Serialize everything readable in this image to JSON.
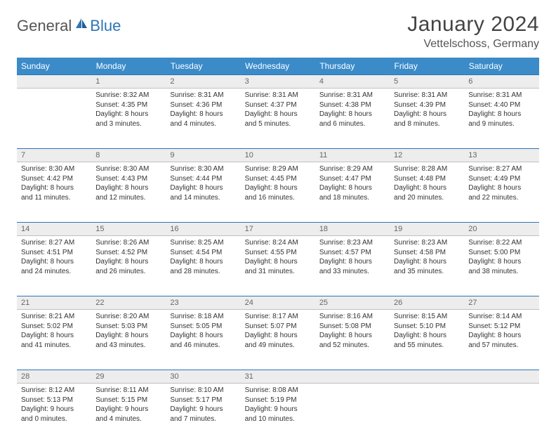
{
  "logo": {
    "text1": "General",
    "text2": "Blue"
  },
  "title": "January 2024",
  "location": "Vettelschoss, Germany",
  "day_headers": [
    "Sunday",
    "Monday",
    "Tuesday",
    "Wednesday",
    "Thursday",
    "Friday",
    "Saturday"
  ],
  "colors": {
    "header_bg": "#3b8bc9",
    "header_text": "#ffffff",
    "row_divider": "#2e75b6",
    "daynum_bg": "#ededed",
    "body_text": "#333333",
    "logo_gray": "#555555",
    "logo_blue": "#2e75b6"
  },
  "weeks": [
    {
      "nums": [
        "",
        "1",
        "2",
        "3",
        "4",
        "5",
        "6"
      ],
      "cells": [
        "",
        "Sunrise: 8:32 AM\nSunset: 4:35 PM\nDaylight: 8 hours and 3 minutes.",
        "Sunrise: 8:31 AM\nSunset: 4:36 PM\nDaylight: 8 hours and 4 minutes.",
        "Sunrise: 8:31 AM\nSunset: 4:37 PM\nDaylight: 8 hours and 5 minutes.",
        "Sunrise: 8:31 AM\nSunset: 4:38 PM\nDaylight: 8 hours and 6 minutes.",
        "Sunrise: 8:31 AM\nSunset: 4:39 PM\nDaylight: 8 hours and 8 minutes.",
        "Sunrise: 8:31 AM\nSunset: 4:40 PM\nDaylight: 8 hours and 9 minutes."
      ]
    },
    {
      "nums": [
        "7",
        "8",
        "9",
        "10",
        "11",
        "12",
        "13"
      ],
      "cells": [
        "Sunrise: 8:30 AM\nSunset: 4:42 PM\nDaylight: 8 hours and 11 minutes.",
        "Sunrise: 8:30 AM\nSunset: 4:43 PM\nDaylight: 8 hours and 12 minutes.",
        "Sunrise: 8:30 AM\nSunset: 4:44 PM\nDaylight: 8 hours and 14 minutes.",
        "Sunrise: 8:29 AM\nSunset: 4:45 PM\nDaylight: 8 hours and 16 minutes.",
        "Sunrise: 8:29 AM\nSunset: 4:47 PM\nDaylight: 8 hours and 18 minutes.",
        "Sunrise: 8:28 AM\nSunset: 4:48 PM\nDaylight: 8 hours and 20 minutes.",
        "Sunrise: 8:27 AM\nSunset: 4:49 PM\nDaylight: 8 hours and 22 minutes."
      ]
    },
    {
      "nums": [
        "14",
        "15",
        "16",
        "17",
        "18",
        "19",
        "20"
      ],
      "cells": [
        "Sunrise: 8:27 AM\nSunset: 4:51 PM\nDaylight: 8 hours and 24 minutes.",
        "Sunrise: 8:26 AM\nSunset: 4:52 PM\nDaylight: 8 hours and 26 minutes.",
        "Sunrise: 8:25 AM\nSunset: 4:54 PM\nDaylight: 8 hours and 28 minutes.",
        "Sunrise: 8:24 AM\nSunset: 4:55 PM\nDaylight: 8 hours and 31 minutes.",
        "Sunrise: 8:23 AM\nSunset: 4:57 PM\nDaylight: 8 hours and 33 minutes.",
        "Sunrise: 8:23 AM\nSunset: 4:58 PM\nDaylight: 8 hours and 35 minutes.",
        "Sunrise: 8:22 AM\nSunset: 5:00 PM\nDaylight: 8 hours and 38 minutes."
      ]
    },
    {
      "nums": [
        "21",
        "22",
        "23",
        "24",
        "25",
        "26",
        "27"
      ],
      "cells": [
        "Sunrise: 8:21 AM\nSunset: 5:02 PM\nDaylight: 8 hours and 41 minutes.",
        "Sunrise: 8:20 AM\nSunset: 5:03 PM\nDaylight: 8 hours and 43 minutes.",
        "Sunrise: 8:18 AM\nSunset: 5:05 PM\nDaylight: 8 hours and 46 minutes.",
        "Sunrise: 8:17 AM\nSunset: 5:07 PM\nDaylight: 8 hours and 49 minutes.",
        "Sunrise: 8:16 AM\nSunset: 5:08 PM\nDaylight: 8 hours and 52 minutes.",
        "Sunrise: 8:15 AM\nSunset: 5:10 PM\nDaylight: 8 hours and 55 minutes.",
        "Sunrise: 8:14 AM\nSunset: 5:12 PM\nDaylight: 8 hours and 57 minutes."
      ]
    },
    {
      "nums": [
        "28",
        "29",
        "30",
        "31",
        "",
        "",
        ""
      ],
      "cells": [
        "Sunrise: 8:12 AM\nSunset: 5:13 PM\nDaylight: 9 hours and 0 minutes.",
        "Sunrise: 8:11 AM\nSunset: 5:15 PM\nDaylight: 9 hours and 4 minutes.",
        "Sunrise: 8:10 AM\nSunset: 5:17 PM\nDaylight: 9 hours and 7 minutes.",
        "Sunrise: 8:08 AM\nSunset: 5:19 PM\nDaylight: 9 hours and 10 minutes.",
        "",
        "",
        ""
      ]
    }
  ]
}
